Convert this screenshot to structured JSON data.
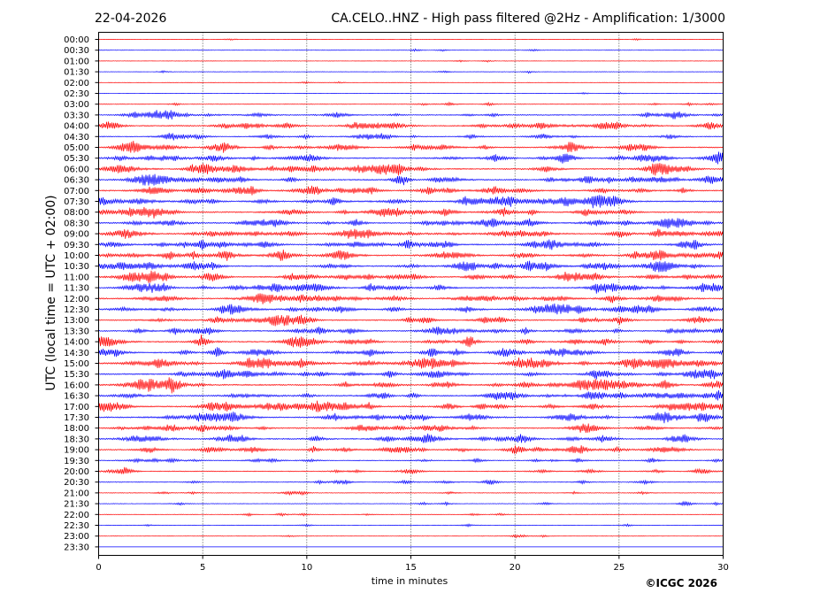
{
  "chart_data": {
    "type": "line",
    "header_date": "22-04-2026",
    "title": "CA.CELO..HNZ - High pass filtered @2Hz - Amplification: 1/3000",
    "xlabel": "time in minutes",
    "ylabel": "UTC (local time = UTC + 02:00)",
    "xlim": [
      0,
      30
    ],
    "x_ticks": [
      "0",
      "5",
      "10",
      "15",
      "20",
      "25",
      "30"
    ],
    "grid": "vertical dotted lines at 5-minute intervals",
    "rows": [
      {
        "label": "00:00",
        "color": "#ff0000",
        "activity": 0.06
      },
      {
        "label": "00:30",
        "color": "#0000ff",
        "activity": 0.1
      },
      {
        "label": "01:00",
        "color": "#ff0000",
        "activity": 0.08
      },
      {
        "label": "01:30",
        "color": "#0000ff",
        "activity": 0.12
      },
      {
        "label": "02:00",
        "color": "#ff0000",
        "activity": 0.07
      },
      {
        "label": "02:30",
        "color": "#0000ff",
        "activity": 0.07
      },
      {
        "label": "03:00",
        "color": "#ff0000",
        "activity": 0.25
      },
      {
        "label": "03:30",
        "color": "#0000ff",
        "activity": 0.6
      },
      {
        "label": "04:00",
        "color": "#ff0000",
        "activity": 0.75
      },
      {
        "label": "04:30",
        "color": "#0000ff",
        "activity": 0.55
      },
      {
        "label": "05:00",
        "color": "#ff0000",
        "activity": 0.75
      },
      {
        "label": "05:30",
        "color": "#0000ff",
        "activity": 0.8
      },
      {
        "label": "06:00",
        "color": "#ff0000",
        "activity": 0.85
      },
      {
        "label": "06:30",
        "color": "#0000ff",
        "activity": 0.85
      },
      {
        "label": "07:00",
        "color": "#ff0000",
        "activity": 0.85
      },
      {
        "label": "07:30",
        "color": "#0000ff",
        "activity": 0.9
      },
      {
        "label": "08:00",
        "color": "#ff0000",
        "activity": 0.85
      },
      {
        "label": "08:30",
        "color": "#0000ff",
        "activity": 0.85
      },
      {
        "label": "09:00",
        "color": "#ff0000",
        "activity": 0.9
      },
      {
        "label": "09:30",
        "color": "#0000ff",
        "activity": 0.9
      },
      {
        "label": "10:00",
        "color": "#ff0000",
        "activity": 0.9
      },
      {
        "label": "10:30",
        "color": "#0000ff",
        "activity": 0.9
      },
      {
        "label": "11:00",
        "color": "#ff0000",
        "activity": 0.9
      },
      {
        "label": "11:30",
        "color": "#0000ff",
        "activity": 0.85
      },
      {
        "label": "12:00",
        "color": "#ff0000",
        "activity": 0.85
      },
      {
        "label": "12:30",
        "color": "#0000ff",
        "activity": 0.85
      },
      {
        "label": "13:00",
        "color": "#ff0000",
        "activity": 0.8
      },
      {
        "label": "13:30",
        "color": "#0000ff",
        "activity": 0.8
      },
      {
        "label": "14:00",
        "color": "#ff0000",
        "activity": 0.8
      },
      {
        "label": "14:30",
        "color": "#0000ff",
        "activity": 0.85
      },
      {
        "label": "15:00",
        "color": "#ff0000",
        "activity": 0.95
      },
      {
        "label": "15:30",
        "color": "#0000ff",
        "activity": 0.9
      },
      {
        "label": "16:00",
        "color": "#ff0000",
        "activity": 0.9
      },
      {
        "label": "16:30",
        "color": "#0000ff",
        "activity": 0.9
      },
      {
        "label": "17:00",
        "color": "#ff0000",
        "activity": 0.9
      },
      {
        "label": "17:30",
        "color": "#0000ff",
        "activity": 0.85
      },
      {
        "label": "18:00",
        "color": "#ff0000",
        "activity": 0.75
      },
      {
        "label": "18:30",
        "color": "#0000ff",
        "activity": 0.8
      },
      {
        "label": "19:00",
        "color": "#ff0000",
        "activity": 0.7
      },
      {
        "label": "19:30",
        "color": "#0000ff",
        "activity": 0.5
      },
      {
        "label": "20:00",
        "color": "#ff0000",
        "activity": 0.45
      },
      {
        "label": "20:30",
        "color": "#0000ff",
        "activity": 0.4
      },
      {
        "label": "21:00",
        "color": "#ff0000",
        "activity": 0.3
      },
      {
        "label": "21:30",
        "color": "#0000ff",
        "activity": 0.25
      },
      {
        "label": "22:00",
        "color": "#ff0000",
        "activity": 0.2
      },
      {
        "label": "22:30",
        "color": "#0000ff",
        "activity": 0.15
      },
      {
        "label": "23:00",
        "color": "#ff0000",
        "activity": 0.15
      },
      {
        "label": "23:30",
        "color": "#0000ff",
        "activity": 0.0
      }
    ]
  },
  "footer": {
    "copyright": "©ICGC 2026"
  }
}
